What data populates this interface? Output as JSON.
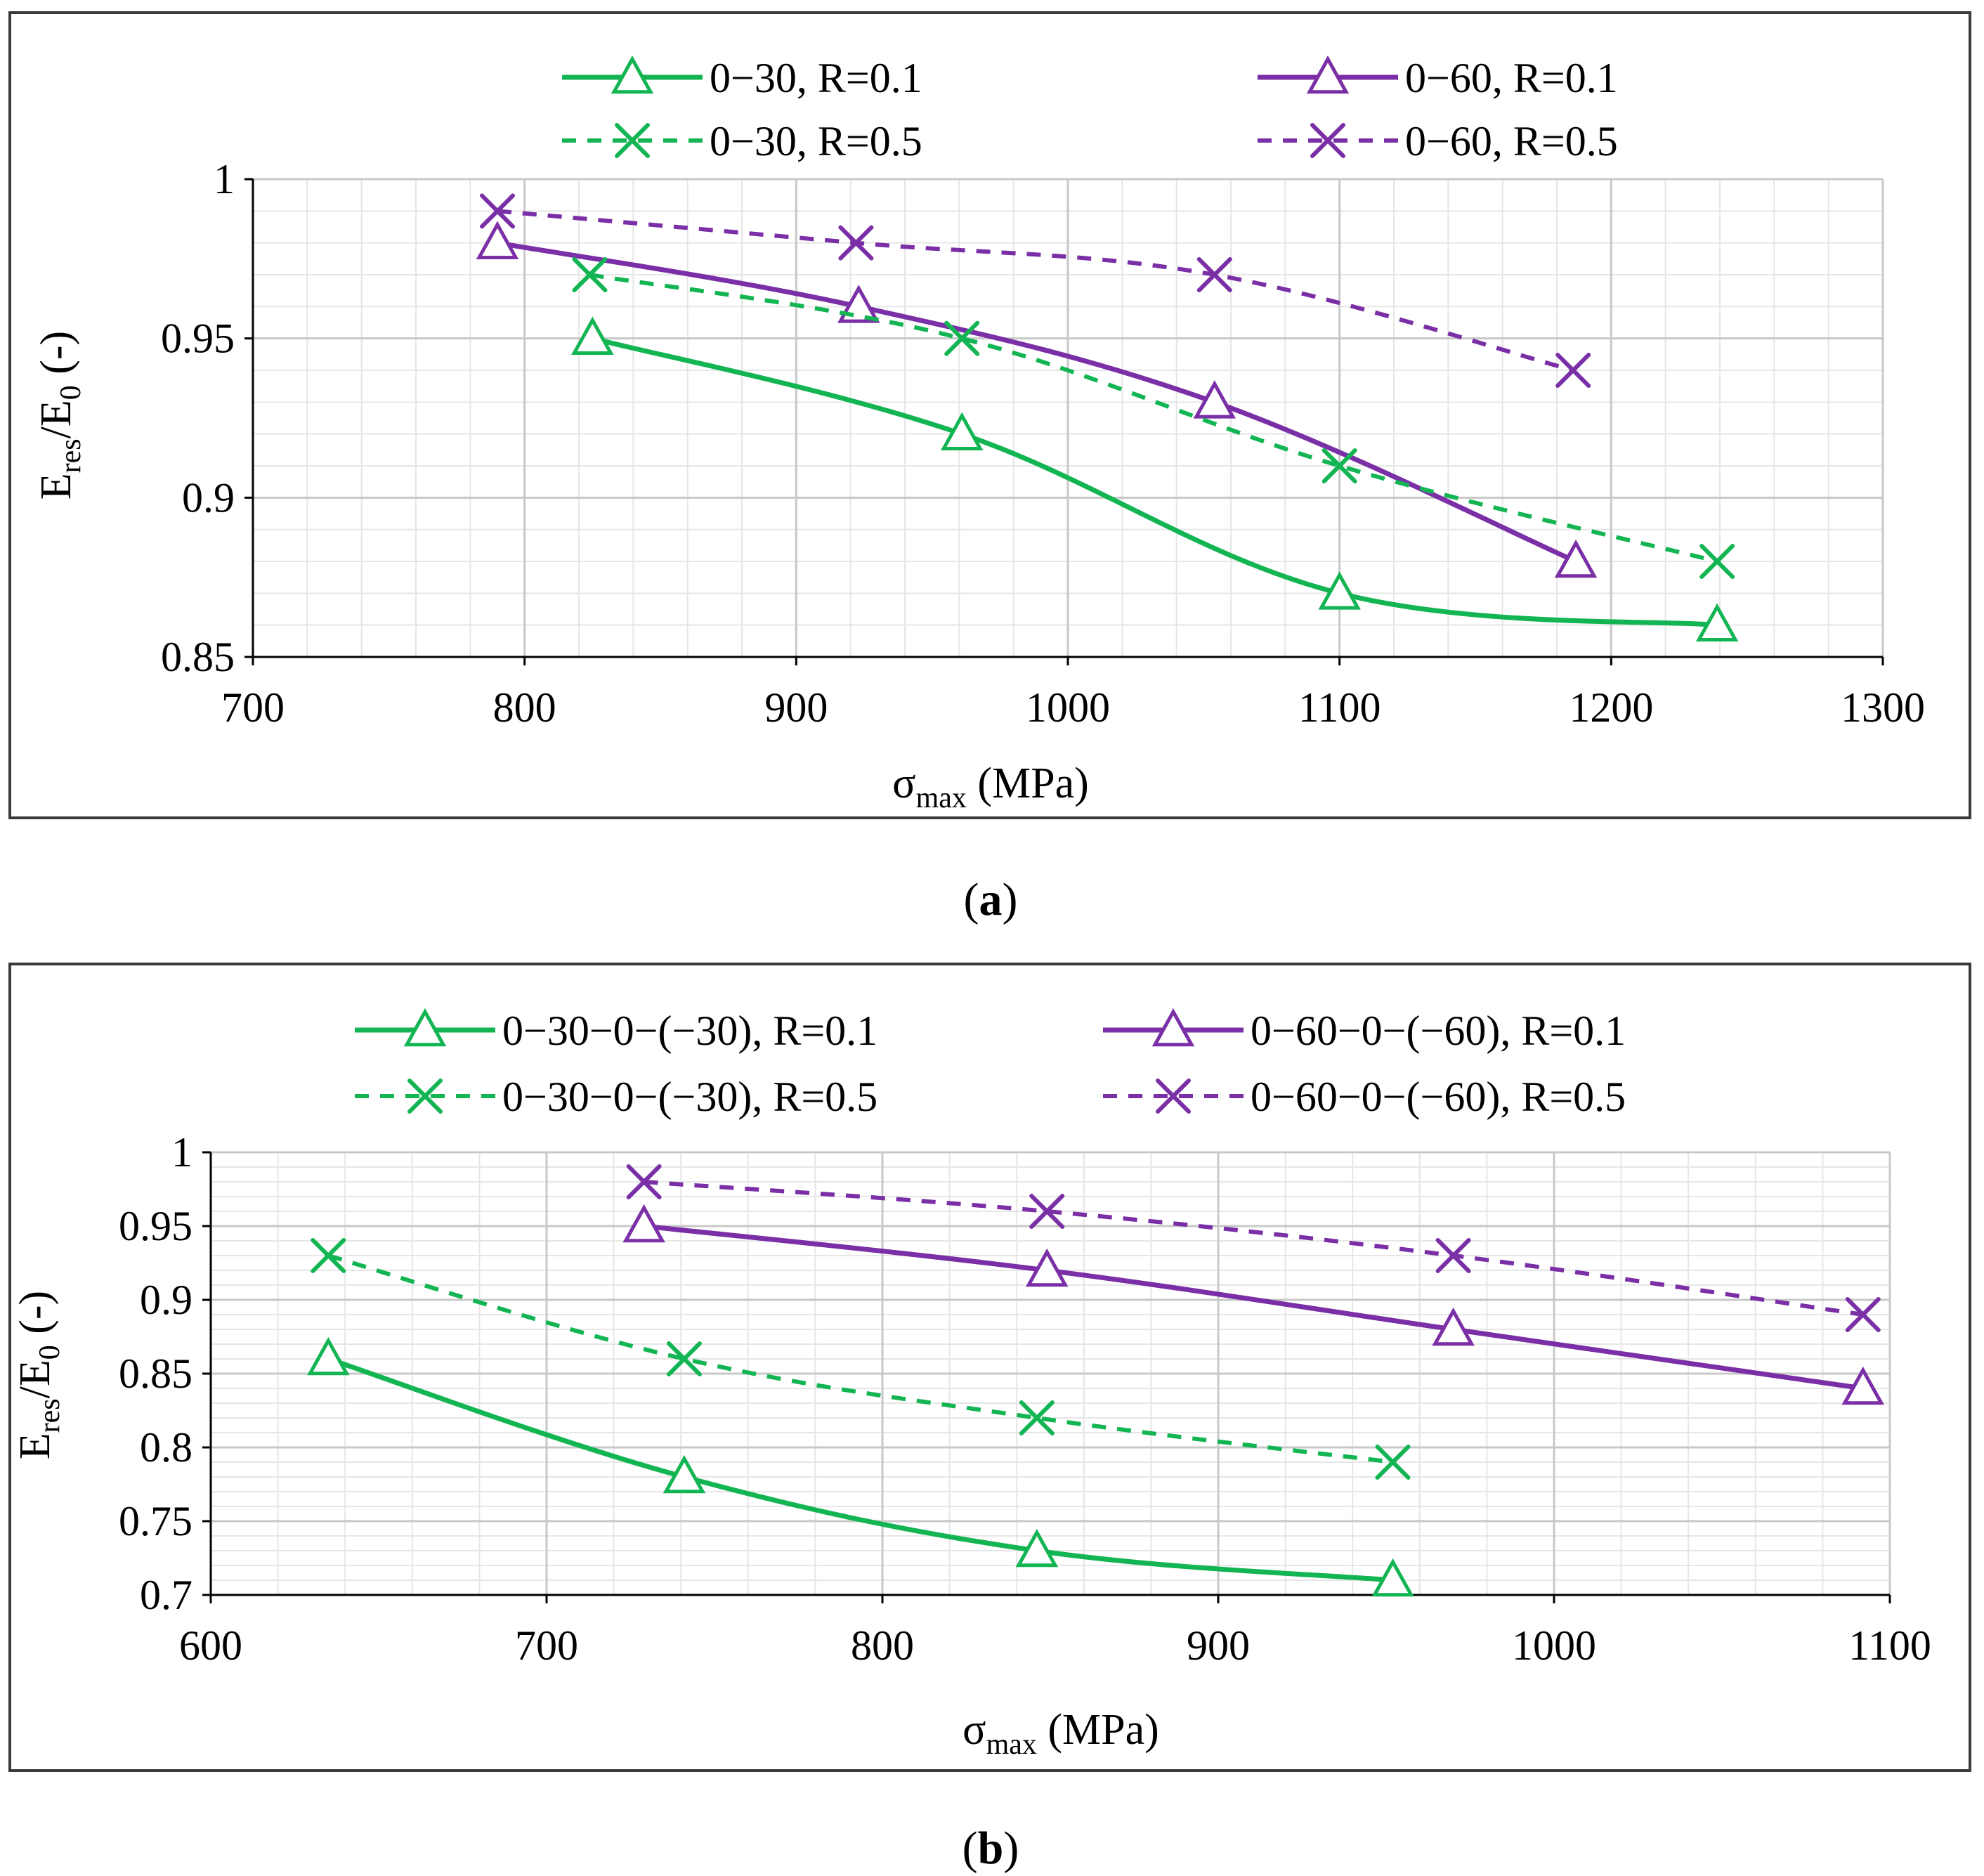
{
  "colors": {
    "green": "#13b553",
    "purple": "#7a2fa6",
    "grid_major": "#c8c8c8",
    "grid_minor": "#e6e6e6",
    "frame": "#3a3a3a"
  },
  "chart_data": [
    {
      "type": "line",
      "panel_label": "a",
      "xlabel": {
        "main": "σ",
        "sub": "max",
        "rest": " (MPa)"
      },
      "ylabel": {
        "e1": "E",
        "s1": "res",
        "mid": "/E",
        "s2": "0",
        "rest": " (-)"
      },
      "xlim": [
        700,
        1300
      ],
      "ylim": [
        0.85,
        1
      ],
      "xticks": [
        700,
        800,
        900,
        1000,
        1100,
        1200,
        1300
      ],
      "yticks": [
        0.85,
        0.9,
        0.95,
        1
      ],
      "ytick_labels": [
        "0.85",
        "0.9",
        "0.95",
        "1"
      ],
      "x_minor": 20,
      "y_minor": 0.01,
      "legend": {
        "position": "top",
        "columns": 2
      },
      "series": [
        {
          "name": "0−30, R=0.1",
          "color": "green",
          "dash": false,
          "marker": "triangle",
          "x": [
            825,
            961,
            1100,
            1239
          ],
          "y": [
            0.95,
            0.92,
            0.87,
            0.86
          ]
        },
        {
          "name": "0−60, R=0.1",
          "color": "purple",
          "dash": false,
          "marker": "triangle",
          "x": [
            790,
            923,
            1054,
            1187
          ],
          "y": [
            0.98,
            0.96,
            0.93,
            0.88
          ]
        },
        {
          "name": "0−30, R=0.5",
          "color": "green",
          "dash": true,
          "marker": "x",
          "x": [
            824,
            961,
            1100,
            1239
          ],
          "y": [
            0.97,
            0.95,
            0.91,
            0.88
          ]
        },
        {
          "name": "0−60, R=0.5",
          "color": "purple",
          "dash": true,
          "marker": "x",
          "x": [
            790,
            922,
            1054,
            1186
          ],
          "y": [
            0.99,
            0.98,
            0.97,
            0.94
          ]
        }
      ]
    },
    {
      "type": "line",
      "panel_label": "b",
      "xlabel": {
        "main": "σ",
        "sub": "max",
        "rest": " (MPa)"
      },
      "ylabel": {
        "e1": "E",
        "s1": "res",
        "mid": "/E",
        "s2": "0",
        "rest": " (-)"
      },
      "xlim": [
        600,
        1100
      ],
      "ylim": [
        0.7,
        1
      ],
      "xticks": [
        600,
        700,
        800,
        900,
        1000,
        1100
      ],
      "yticks": [
        0.7,
        0.75,
        0.8,
        0.85,
        0.9,
        0.95,
        1
      ],
      "ytick_labels": [
        "0.7",
        "0.75",
        "0.8",
        "0.85",
        "0.9",
        "0.95",
        "1"
      ],
      "x_minor": 20,
      "y_minor": 0.01,
      "legend": {
        "position": "top",
        "columns": 2
      },
      "series": [
        {
          "name": "0−30−0−(−30), R=0.1",
          "color": "green",
          "dash": false,
          "marker": "triangle",
          "x": [
            635,
            741,
            846,
            952
          ],
          "y": [
            0.86,
            0.78,
            0.73,
            0.71
          ]
        },
        {
          "name": "0−60−0−(−60), R=0.1",
          "color": "purple",
          "dash": false,
          "marker": "triangle",
          "x": [
            729,
            849,
            970,
            1092
          ],
          "y": [
            0.95,
            0.92,
            0.88,
            0.84
          ]
        },
        {
          "name": "0−30−0−(−30), R=0.5",
          "color": "green",
          "dash": true,
          "marker": "x",
          "x": [
            635,
            741,
            846,
            952
          ],
          "y": [
            0.93,
            0.86,
            0.82,
            0.79
          ]
        },
        {
          "name": "0−60−0−(−60), R=0.5",
          "color": "purple",
          "dash": true,
          "marker": "x",
          "x": [
            729,
            849,
            970,
            1092
          ],
          "y": [
            0.98,
            0.96,
            0.93,
            0.89
          ]
        }
      ]
    }
  ]
}
